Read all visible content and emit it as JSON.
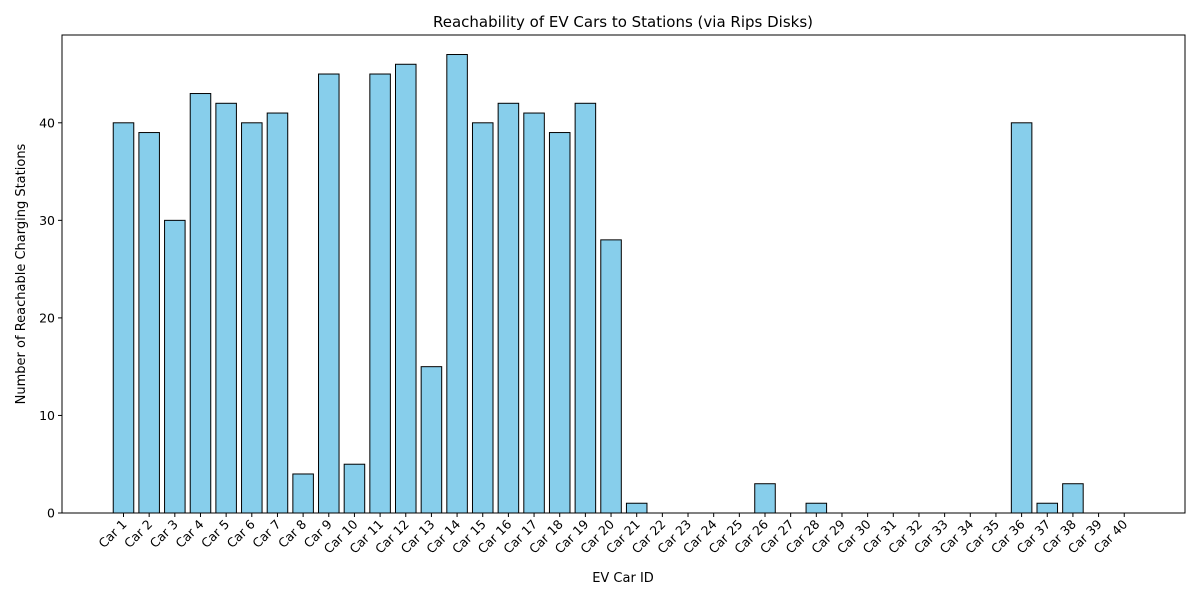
{
  "chart_data": {
    "type": "bar",
    "title": "Reachability of EV Cars to Stations (via Rips Disks)",
    "xlabel": "EV Car ID",
    "ylabel": "Number of Reachable Charging Stations",
    "ylim": [
      0,
      49
    ],
    "yticks": [
      0,
      10,
      20,
      30,
      40
    ],
    "grid": false,
    "legend": "none",
    "bar_color": "#87ceeb",
    "edge_color": "#000000",
    "categories": [
      "Car 1",
      "Car 2",
      "Car 3",
      "Car 4",
      "Car 5",
      "Car 6",
      "Car 7",
      "Car 8",
      "Car 9",
      "Car 10",
      "Car 11",
      "Car 12",
      "Car 13",
      "Car 14",
      "Car 15",
      "Car 16",
      "Car 17",
      "Car 18",
      "Car 19",
      "Car 20",
      "Car 21",
      "Car 22",
      "Car 23",
      "Car 24",
      "Car 25",
      "Car 26",
      "Car 27",
      "Car 28",
      "Car 29",
      "Car 30",
      "Car 31",
      "Car 32",
      "Car 33",
      "Car 34",
      "Car 35",
      "Car 36",
      "Car 37",
      "Car 38",
      "Car 39",
      "Car 40"
    ],
    "values": [
      40,
      39,
      30,
      43,
      42,
      40,
      41,
      4,
      45,
      5,
      45,
      46,
      15,
      47,
      40,
      42,
      41,
      39,
      42,
      28,
      1,
      0,
      0,
      0,
      0,
      3,
      0,
      1,
      0,
      0,
      0,
      0,
      0,
      0,
      0,
      40,
      1,
      3,
      0,
      0
    ]
  }
}
